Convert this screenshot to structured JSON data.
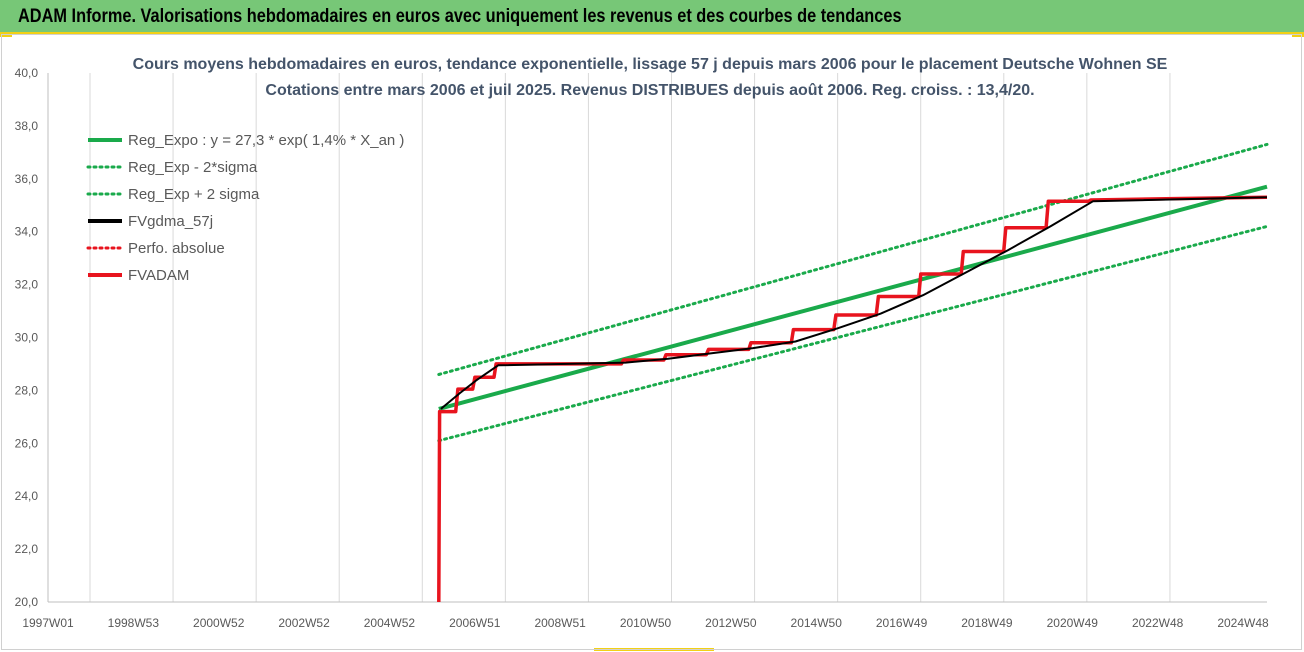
{
  "header": {
    "title": "ADAM Informe. Valorisations hebdomadaires en euros avec uniquement les revenus et des courbes de tendances"
  },
  "colors": {
    "header_bg": "#77c777",
    "accent_yellow": "#f2d016",
    "reg_green": "#1aaa4b",
    "fvadam_red": "#e8141e",
    "fvgdma_black": "#000000"
  },
  "chart_data": {
    "type": "line",
    "title": "Cours moyens hebdomadaires en euros, tendance exponentielle, lissage 57 j depuis mars 2006 pour le placement Deutsche Wohnen SE",
    "subtitle": "Cotations entre mars 2006 et juil 2025. Revenus DISTRIBUES depuis août 2006. Reg. croiss. : 13,4/20.",
    "x_tick_labels": [
      "1997W01",
      "1998W53",
      "2000W52",
      "2002W52",
      "2004W52",
      "2006W51",
      "2008W51",
      "2010W50",
      "2012W50",
      "2014W50",
      "2016W49",
      "2018W49",
      "2020W49",
      "2022W48",
      "2024W48"
    ],
    "x_range": [
      1997.0,
      2025.7
    ],
    "ylim": [
      20,
      40
    ],
    "y_ticks": [
      "20,0",
      "22,0",
      "24,0",
      "26,0",
      "28,0",
      "30,0",
      "32,0",
      "34,0",
      "36,0",
      "38,0",
      "40,0"
    ],
    "grid": "vertical",
    "legend_position": "top-left",
    "legend": [
      {
        "label": "Reg_Expo : y = 27,3 * exp( 1,4% *  X_an )",
        "color": "#1aaa4b",
        "style": "solid"
      },
      {
        "label": "Reg_Exp - 2*sigma",
        "color": "#1aaa4b",
        "style": "dotted"
      },
      {
        "label": "Reg_Exp + 2 sigma",
        "color": "#1aaa4b",
        "style": "dotted"
      },
      {
        "label": "FVgdma_57j",
        "color": "#000000",
        "style": "solid"
      },
      {
        "label": "Perfo. absolue",
        "color": "#e8141e",
        "style": "dotted"
      },
      {
        "label": "FVADAM",
        "color": "#e8141e",
        "style": "solid"
      }
    ],
    "series": [
      {
        "name": "Reg_Expo : y = 27,3 * exp( 1,4% *  X_an )",
        "x": [
          2006.2,
          2025.7
        ],
        "y": [
          27.3,
          35.7
        ]
      },
      {
        "name": "Reg_Exp - 2*sigma",
        "x": [
          2006.2,
          2025.7
        ],
        "y": [
          26.1,
          34.2
        ]
      },
      {
        "name": "Reg_Exp + 2 sigma",
        "x": [
          2006.2,
          2025.7
        ],
        "y": [
          28.6,
          37.3
        ]
      },
      {
        "name": "FVADAM",
        "x": [
          2006.2,
          2006.22,
          2006.6,
          2006.65,
          2007.0,
          2007.05,
          2007.5,
          2007.55,
          2010.5,
          2010.55,
          2011.5,
          2011.55,
          2012.5,
          2012.55,
          2013.5,
          2013.55,
          2014.5,
          2014.55,
          2015.5,
          2015.55,
          2016.5,
          2016.55,
          2017.5,
          2017.55,
          2018.5,
          2018.55,
          2019.5,
          2019.55,
          2020.5,
          2020.55,
          2021.5,
          2021.55,
          2023.5,
          2025.7
        ],
        "y": [
          20.0,
          27.2,
          27.2,
          28.05,
          28.05,
          28.5,
          28.5,
          29.0,
          29.0,
          29.15,
          29.15,
          29.35,
          29.35,
          29.55,
          29.55,
          29.8,
          29.8,
          30.3,
          30.3,
          30.85,
          30.85,
          31.55,
          31.55,
          32.4,
          32.4,
          33.25,
          33.25,
          34.15,
          34.15,
          35.15,
          35.15,
          35.2,
          35.25,
          35.3
        ]
      },
      {
        "name": "FVgdma_57j",
        "x": [
          2006.25,
          2006.7,
          2007.1,
          2007.6,
          2010.6,
          2011.6,
          2012.6,
          2013.6,
          2014.6,
          2015.6,
          2016.6,
          2017.6,
          2018.6,
          2019.6,
          2020.6,
          2021.6,
          2025.7
        ],
        "y": [
          27.3,
          27.9,
          28.4,
          28.95,
          29.05,
          29.2,
          29.4,
          29.6,
          29.85,
          30.35,
          30.9,
          31.6,
          32.45,
          33.3,
          34.2,
          35.15,
          35.3
        ]
      }
    ]
  }
}
